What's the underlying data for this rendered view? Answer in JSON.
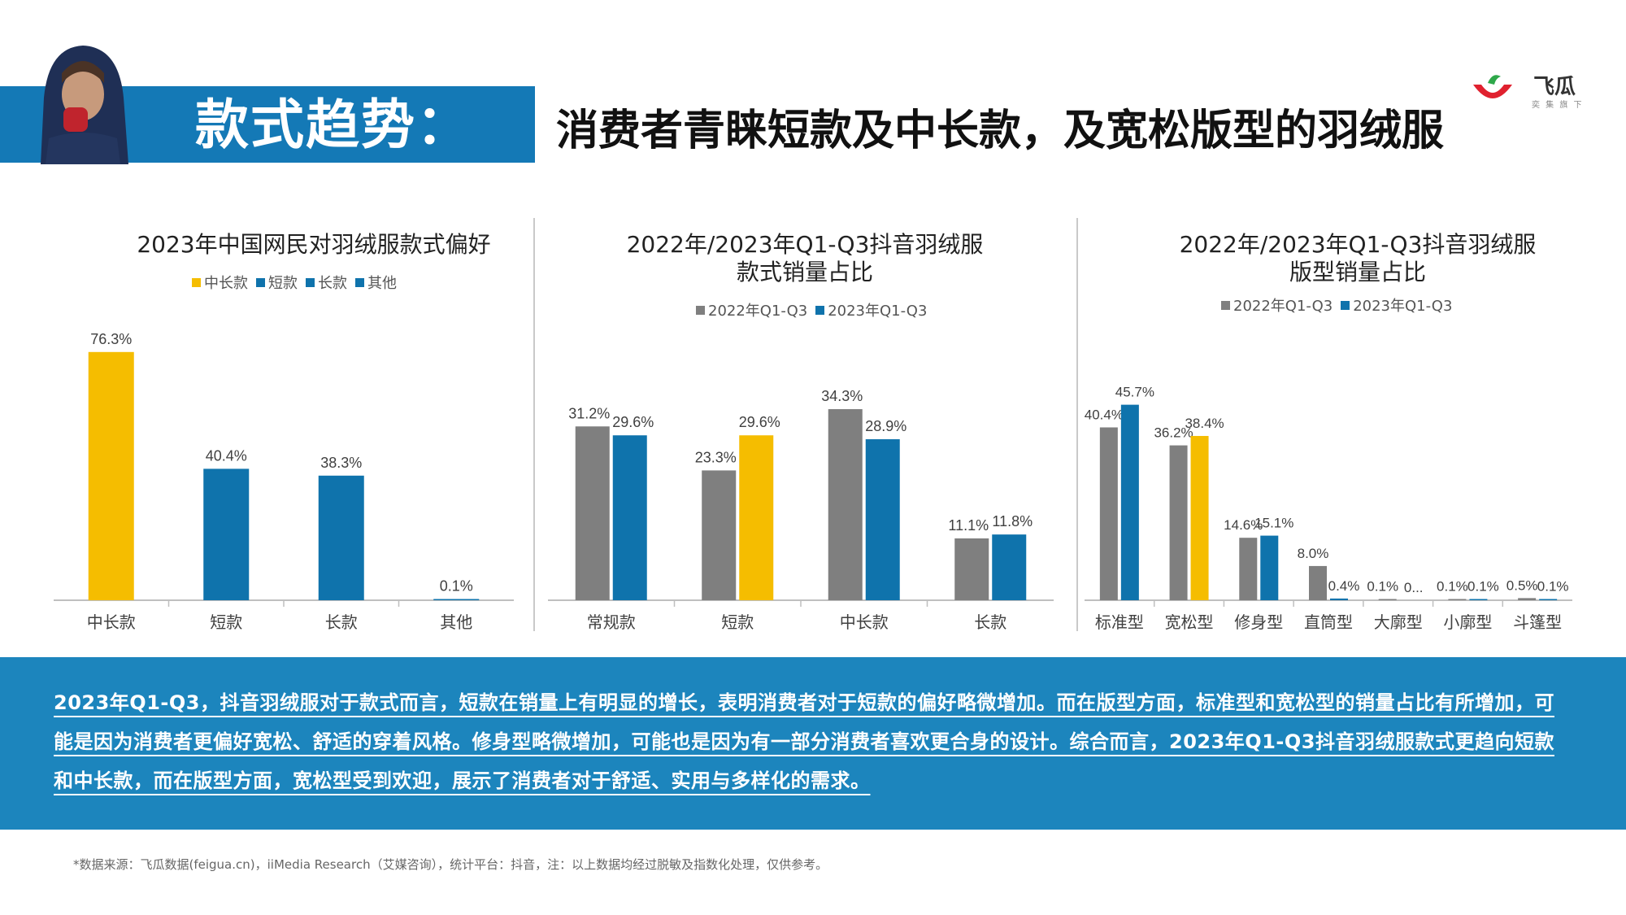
{
  "header": {
    "band_title": "款式趋势：",
    "headline": "消费者青睐短款及中长款，及宽松版型的羽绒服",
    "logo_text": "飞瓜",
    "logo_sub": "奕 集 旗 下"
  },
  "colors": {
    "brand_blue": "#1479b6",
    "summary_blue": "#1c85bd",
    "bar_blue": "#0f73ac",
    "bar_yellow": "#f5bd00",
    "bar_gray": "#7f7f7f",
    "logo_red": "#e0212f",
    "logo_green": "#2ea84a"
  },
  "chart_data": [
    {
      "type": "bar",
      "title": "2023年中国网民对羽绒服款式偏好",
      "legend": [
        "中长款",
        "短款",
        "长款",
        "其他"
      ],
      "legend_colors": [
        "#f5bd00",
        "#0f73ac",
        "#0f73ac",
        "#0f73ac"
      ],
      "categories": [
        "中长款",
        "短款",
        "长款",
        "其他"
      ],
      "values": [
        76.3,
        40.4,
        38.3,
        0.1
      ],
      "value_labels": [
        "76.3%",
        "40.4%",
        "38.3%",
        "0.1%"
      ],
      "bar_colors": [
        "#f5bd00",
        "#0f73ac",
        "#0f73ac",
        "#0f73ac"
      ],
      "ylim": [
        0,
        80
      ]
    },
    {
      "type": "bar",
      "title": "2022年/2023年Q1-Q3抖音羽绒服款式销量占比",
      "categories": [
        "常规款",
        "短款",
        "中长款",
        "长款"
      ],
      "series": [
        {
          "name": "2022年Q1-Q3",
          "values": [
            31.2,
            23.3,
            34.3,
            11.1
          ],
          "value_labels": [
            "31.2%",
            "23.3%",
            "34.3%",
            "11.1%"
          ],
          "colors": [
            "#7f7f7f",
            "#7f7f7f",
            "#7f7f7f",
            "#7f7f7f"
          ]
        },
        {
          "name": "2023年Q1-Q3",
          "values": [
            29.6,
            29.6,
            28.9,
            11.8
          ],
          "value_labels": [
            "29.6%",
            "29.6%",
            "28.9%",
            "11.8%"
          ],
          "colors": [
            "#0f73ac",
            "#f5bd00",
            "#0f73ac",
            "#0f73ac"
          ]
        }
      ],
      "legend_colors": [
        "#7f7f7f",
        "#0f73ac"
      ],
      "ylim": [
        0,
        40
      ]
    },
    {
      "type": "bar",
      "title": "2022年/2023年Q1-Q3抖音羽绒服版型销量占比",
      "categories": [
        "标准型",
        "宽松型",
        "修身型",
        "直筒型",
        "大廓型",
        "小廓型",
        "斗篷型"
      ],
      "series": [
        {
          "name": "2022年Q1-Q3",
          "values": [
            40.4,
            36.2,
            14.6,
            8.0,
            0.1,
            0.1,
            0.5
          ],
          "value_labels": [
            "40.4%",
            "36.2%",
            "14.6%",
            "8.0%",
            "0.1%",
            "0.1%",
            "0.5%"
          ],
          "colors": [
            "#7f7f7f",
            "#7f7f7f",
            "#7f7f7f",
            "#7f7f7f",
            "#7f7f7f",
            "#7f7f7f",
            "#7f7f7f"
          ]
        },
        {
          "name": "2023年Q1-Q3",
          "values": [
            45.7,
            38.4,
            15.1,
            0.4,
            0.0,
            0.1,
            0.1
          ],
          "value_labels": [
            "45.7%",
            "38.4%",
            "15.1%",
            "0.4%",
            "0...",
            "0.1%",
            "0.1%"
          ],
          "colors": [
            "#0f73ac",
            "#f5bd00",
            "#0f73ac",
            "#0f73ac",
            "#0f73ac",
            "#0f73ac",
            "#0f73ac"
          ]
        }
      ],
      "legend_colors": [
        "#7f7f7f",
        "#0f73ac"
      ],
      "ylim": [
        0,
        50
      ]
    }
  ],
  "charts_text": {
    "c1_title": "2023年中国网民对羽绒服款式偏好",
    "c2_title_l1": "2022年/2023年Q1-Q3抖音羽绒服",
    "c2_title_l2": "款式销量占比",
    "c3_title_l1": "2022年/2023年Q1-Q3抖音羽绒服",
    "c3_title_l2": "版型销量占比"
  },
  "summary": {
    "text": "2023年Q1-Q3，抖音羽绒服对于款式而言，短款在销量上有明显的增长，表明消费者对于短款的偏好略微增加。而在版型方面，标准型和宽松型的销量占比有所增加，可能是因为消费者更偏好宽松、舒适的穿着风格。修身型略微增加，可能也是因为有一部分消费者喜欢更合身的设计。综合而言，2023年Q1-Q3抖音羽绒服款式更趋向短款和中长款，而在版型方面，宽松型受到欢迎，展示了消费者对于舒适、实用与多样化的需求。"
  },
  "footnote": "*数据来源：飞瓜数据(feigua.cn)，iiMedia Research（艾媒咨询），统计平台：抖音，注：以上数据均经过脱敏及指数化处理，仅供参考。"
}
